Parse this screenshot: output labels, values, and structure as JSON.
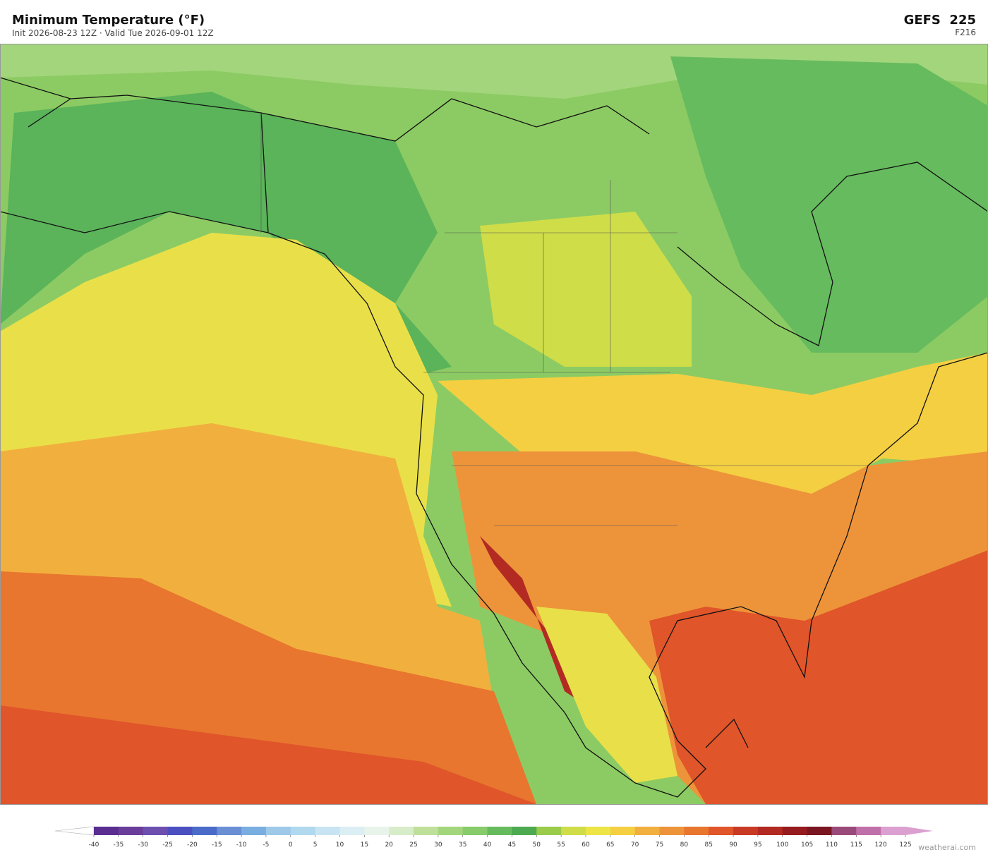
{
  "header": {
    "title": "Minimum Temperature  (°F)",
    "subtitle": "Init 2026-08-23 12Z   ·   Valid Tue 2026-09-01 12Z",
    "model": "GEFS  225",
    "forecast_hour": "F216"
  },
  "colorbar": {
    "ticks": [
      -40,
      -35,
      -30,
      -25,
      -20,
      -15,
      -10,
      -5,
      0,
      5,
      10,
      15,
      20,
      25,
      30,
      35,
      40,
      45,
      50,
      55,
      60,
      65,
      70,
      75,
      80,
      85,
      90,
      95,
      100,
      105,
      110,
      115,
      120,
      125
    ],
    "colors": [
      "#5a2d91",
      "#6a3d9a",
      "#6d4fb0",
      "#4b4fc0",
      "#4a6cc8",
      "#6a8fd4",
      "#7aaee0",
      "#9ec9e8",
      "#b0d8ee",
      "#c8e4f2",
      "#dbeef3",
      "#e8f4ea",
      "#d7ecc8",
      "#bfe09a",
      "#a3d67c",
      "#87cb6a",
      "#66bb5e",
      "#4daa50",
      "#9acb4a",
      "#cfdd48",
      "#ece545",
      "#f4cf42",
      "#f1b03e",
      "#ed943a",
      "#e8762f",
      "#e0552a",
      "#c93a25",
      "#b22a22",
      "#951b1e",
      "#7a1620",
      "#9a4a7a",
      "#c070a8",
      "#dba0cf"
    ],
    "under_color": "#ffffff",
    "over_color": "#dba0cf"
  },
  "footer": {
    "credit": "weatherai.com"
  }
}
